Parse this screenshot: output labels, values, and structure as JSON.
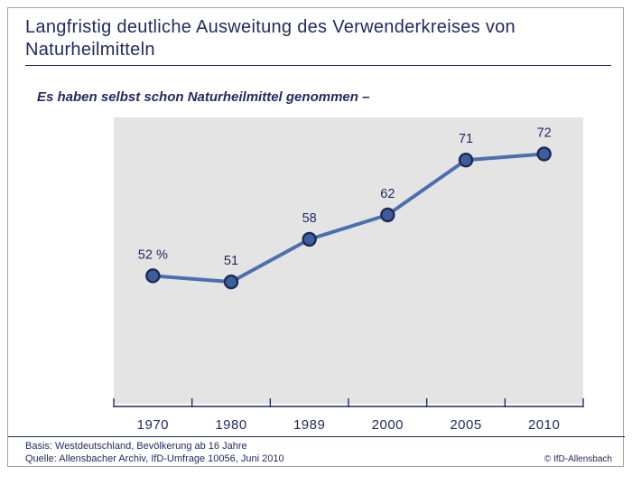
{
  "page": {
    "title": "Langfristig deutliche Ausweitung des Verwenderkreises von Naturheilmitteln",
    "subtitle": "Es haben selbst schon Naturheilmittel genommen –",
    "footer": {
      "basis": "Basis: Westdeutschland, Bevölkerung ab 16 Jahre",
      "quelle": "Quelle: Allensbacher Archiv, IfD-Umfrage 10056, Juni 2010",
      "copyright": "© IfD-Allensbach"
    }
  },
  "colors": {
    "navy": "#232a5f",
    "line": "#4b70ad",
    "marker_fill": "#3c5da0",
    "marker_stroke": "#20294f",
    "plot_bg": "#e4e4e5"
  },
  "chart_data": {
    "type": "line",
    "categories": [
      "1970",
      "1980",
      "1989",
      "2000",
      "2005",
      "2010"
    ],
    "values": [
      52,
      51,
      58,
      62,
      71,
      72
    ],
    "point_labels": [
      "52 %",
      "51",
      "58",
      "62",
      "71",
      "72"
    ],
    "title": "Es haben selbst schon Naturheilmittel genommen –",
    "xlabel": "",
    "ylabel": "",
    "ylim": [
      31,
      78
    ],
    "grid": false,
    "legend": "none"
  }
}
